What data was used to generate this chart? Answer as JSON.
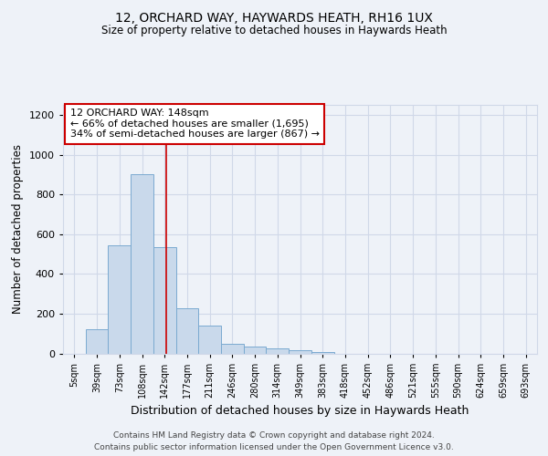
{
  "title1": "12, ORCHARD WAY, HAYWARDS HEATH, RH16 1UX",
  "title2": "Size of property relative to detached houses in Haywards Heath",
  "xlabel": "Distribution of detached houses by size in Haywards Heath",
  "ylabel": "Number of detached properties",
  "bin_labels": [
    "5sqm",
    "39sqm",
    "73sqm",
    "108sqm",
    "142sqm",
    "177sqm",
    "211sqm",
    "246sqm",
    "280sqm",
    "314sqm",
    "349sqm",
    "383sqm",
    "418sqm",
    "452sqm",
    "486sqm",
    "521sqm",
    "555sqm",
    "590sqm",
    "624sqm",
    "659sqm",
    "693sqm"
  ],
  "bar_values": [
    0,
    120,
    545,
    900,
    535,
    225,
    140,
    50,
    35,
    25,
    15,
    5,
    0,
    0,
    0,
    0,
    0,
    0,
    0,
    0,
    0
  ],
  "bar_color": "#c9d9eb",
  "bar_edge_color": "#7aaad0",
  "grid_color": "#d0d8e8",
  "bg_color": "#eef2f8",
  "red_line_x": 4.09,
  "red_line_color": "#cc0000",
  "annotation_text": "12 ORCHARD WAY: 148sqm\n← 66% of detached houses are smaller (1,695)\n34% of semi-detached houses are larger (867) →",
  "annotation_box_color": "#cc0000",
  "ylim": [
    0,
    1250
  ],
  "yticks": [
    0,
    200,
    400,
    600,
    800,
    1000,
    1200
  ],
  "footer1": "Contains HM Land Registry data © Crown copyright and database right 2024.",
  "footer2": "Contains public sector information licensed under the Open Government Licence v3.0."
}
